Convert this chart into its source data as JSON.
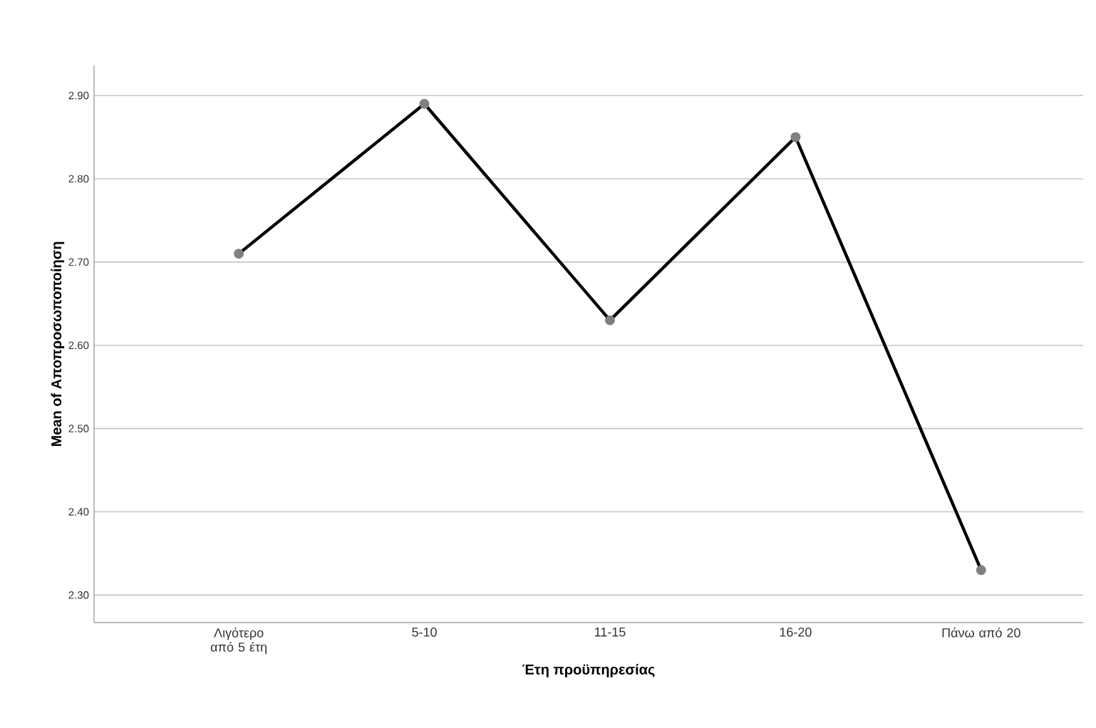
{
  "chart_data": {
    "type": "line",
    "xlabel": "Έτη προϋπηρεσίας",
    "ylabel": "Mean of Αποπροσωποποίηση",
    "categories": [
      "Λιγότερο από 5 έτη",
      "5-10",
      "11-15",
      "16-20",
      "Πάνω από 20"
    ],
    "series": [
      {
        "color": "#000000",
        "values": [
          2.71,
          2.89,
          2.63,
          2.85,
          2.33
        ]
      }
    ],
    "ylim": [
      2.267,
      2.936
    ],
    "yticks": [
      {
        "value": 2.3,
        "label": "2.30"
      },
      {
        "value": 2.4,
        "label": "2.40"
      },
      {
        "value": 2.5,
        "label": "2.50"
      },
      {
        "value": 2.6,
        "label": "2.60"
      },
      {
        "value": 2.7,
        "label": "2.70"
      },
      {
        "value": 2.8,
        "label": "2.80"
      },
      {
        "value": 2.9,
        "label": "2.90"
      }
    ],
    "grid": "y",
    "marker": "circle",
    "line_style": "solid"
  }
}
